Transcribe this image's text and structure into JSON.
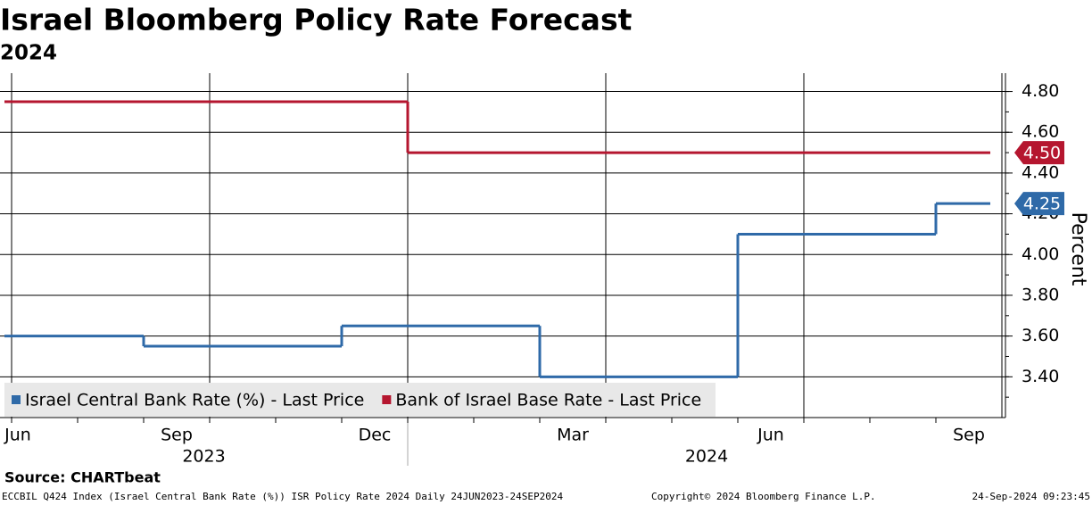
{
  "chart_data": {
    "type": "step-line",
    "title": "Israel Bloomberg Policy Rate Forecast",
    "subtitle": "2024",
    "y_axis_label": "Percent",
    "x": [
      "2023-06",
      "2023-07",
      "2023-08",
      "2023-09",
      "2023-10",
      "2023-11",
      "2023-12",
      "2024-01",
      "2024-02",
      "2024-03",
      "2024-04",
      "2024-05",
      "2024-06",
      "2024-07",
      "2024-08",
      "2024-09"
    ],
    "series": [
      {
        "name": "Israel Central Bank Rate (%) - Last Price",
        "color": "#2f6aa8",
        "values": [
          3.6,
          3.6,
          3.6,
          3.55,
          3.55,
          3.55,
          3.65,
          3.65,
          3.65,
          3.4,
          3.4,
          3.4,
          4.1,
          4.1,
          4.1,
          4.25
        ],
        "value_labels": [
          null,
          null,
          null,
          null,
          null,
          null,
          null,
          null,
          null,
          null,
          null,
          null,
          null,
          null,
          null,
          "4.25"
        ]
      },
      {
        "name": "Bank of Israel Base Rate - Last Price",
        "color": "#b5162f",
        "values": [
          4.75,
          4.75,
          4.75,
          4.75,
          4.75,
          4.75,
          4.75,
          4.5,
          4.5,
          4.5,
          4.5,
          4.5,
          4.5,
          4.5,
          4.5,
          4.5
        ],
        "value_labels": [
          null,
          null,
          null,
          null,
          null,
          null,
          null,
          null,
          null,
          null,
          null,
          null,
          null,
          null,
          null,
          "4.50"
        ]
      }
    ],
    "ylim": [
      3.2,
      4.89
    ],
    "yticks": [
      {
        "value": 3.4,
        "label": "3.40"
      },
      {
        "value": 3.6,
        "label": "3.60"
      },
      {
        "value": 3.8,
        "label": "3.80"
      },
      {
        "value": 4.0,
        "label": "4.00"
      },
      {
        "value": 4.2,
        "label": "4.20"
      },
      {
        "value": 4.4,
        "label": "4.40"
      },
      {
        "value": 4.6,
        "label": "4.60"
      },
      {
        "value": 4.8,
        "label": "4.80"
      }
    ],
    "xticks": [
      {
        "value": "2023-06",
        "label": "Jun"
      },
      {
        "value": "2023-09",
        "label": "Sep"
      },
      {
        "value": "2023-12",
        "label": "Dec"
      },
      {
        "value": "2024-03",
        "label": "Mar"
      },
      {
        "value": "2024-06",
        "label": "Jun"
      },
      {
        "value": "2024-09",
        "label": "Sep"
      }
    ],
    "years": [
      "2023",
      "2024"
    ],
    "grid": true,
    "legend": "bottom-left",
    "source": "Source: CHARTbeat",
    "footer": [
      "ECCBIL Q424 Index (Israel Central Bank Rate (%)) ISR Policy Rate 2024  Daily 24JUN2023-24SEP2024",
      "Copyright© 2024 Bloomberg Finance L.P.",
      "24-Sep-2024 09:23:45"
    ]
  }
}
